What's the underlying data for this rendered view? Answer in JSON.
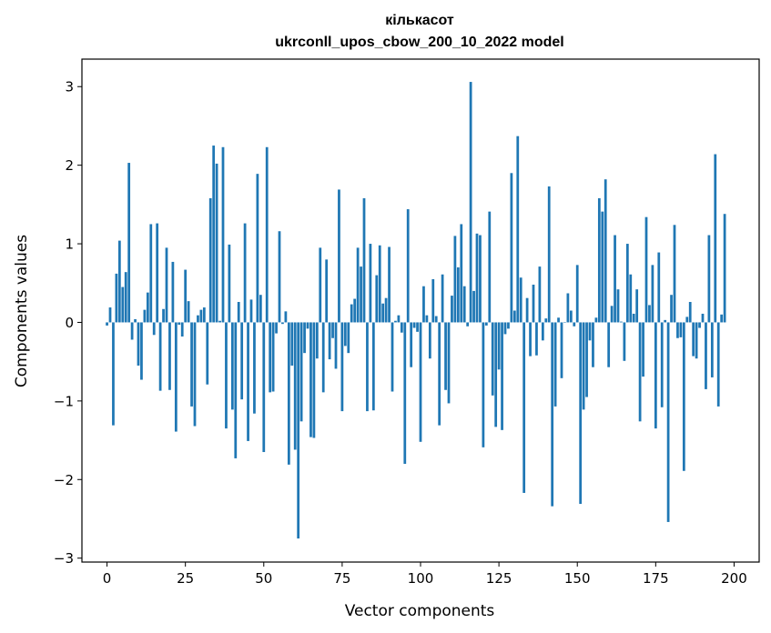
{
  "chart_data": {
    "type": "bar",
    "title": "кількасот",
    "subtitle": "ukrconll_upos_cbow_200_10_2022 model",
    "xlabel": "Vector components",
    "ylabel": "Components values",
    "xlim": [
      -8,
      208
    ],
    "ylim": [
      -3.05,
      3.35
    ],
    "xticks": [
      0,
      25,
      50,
      75,
      100,
      125,
      150,
      175,
      200
    ],
    "yticks": [
      -3,
      -2,
      -1,
      0,
      1,
      2,
      3
    ],
    "ytick_labels": [
      "−3",
      "−2",
      "−1",
      "0",
      "1",
      "2",
      "3"
    ],
    "grid": false,
    "bar_color": "#1f77b4",
    "series": [
      {
        "values": [
          -0.04,
          0.19,
          -1.31,
          0.62,
          1.04,
          0.45,
          0.64,
          2.03,
          -0.22,
          0.04,
          -0.55,
          -0.73,
          0.16,
          0.38,
          1.25,
          -0.16,
          1.26,
          -0.87,
          0.17,
          0.95,
          -0.86,
          0.77,
          -1.39,
          -0.03,
          -0.18,
          0.67,
          0.27,
          -1.07,
          -1.32,
          0.09,
          0.16,
          0.19,
          -0.79,
          1.58,
          2.25,
          2.02,
          0.02,
          2.23,
          -1.35,
          0.99,
          -1.11,
          -1.73,
          0.26,
          -0.98,
          1.26,
          -1.51,
          0.29,
          -1.16,
          1.89,
          0.35,
          -1.65,
          2.23,
          -0.89,
          -0.88,
          -0.14,
          1.16,
          -0.02,
          0.14,
          -1.81,
          -0.55,
          -1.62,
          -2.75,
          -1.26,
          -0.39,
          -0.08,
          -1.46,
          -1.47,
          -0.46,
          0.95,
          -0.89,
          0.8,
          -0.47,
          -0.2,
          -0.59,
          1.69,
          -1.13,
          -0.3,
          -0.39,
          0.23,
          0.3,
          0.95,
          0.71,
          1.58,
          -1.13,
          1.0,
          -1.12,
          0.6,
          0.98,
          0.24,
          0.31,
          0.96,
          -0.88,
          0.02,
          0.09,
          -0.13,
          -1.8,
          1.44,
          -0.57,
          -0.07,
          -0.12,
          -1.52,
          0.46,
          0.09,
          -0.46,
          0.55,
          0.08,
          -1.31,
          0.61,
          -0.86,
          -1.03,
          0.34,
          1.1,
          0.7,
          1.25,
          0.46,
          -0.05,
          3.06,
          0.4,
          1.13,
          1.11,
          -1.59,
          -0.04,
          1.41,
          -0.93,
          -1.33,
          -0.6,
          -1.37,
          -0.15,
          -0.08,
          1.9,
          0.15,
          2.37,
          0.57,
          -2.17,
          0.31,
          -0.43,
          0.48,
          -0.42,
          0.71,
          -0.23,
          0.05,
          1.73,
          -2.34,
          -1.07,
          0.06,
          -0.71,
          0.0,
          0.37,
          0.15,
          -0.05,
          0.73,
          -2.31,
          -1.11,
          -0.95,
          -0.23,
          -0.57,
          0.06,
          1.58,
          1.41,
          1.82,
          -0.57,
          0.21,
          1.11,
          0.42,
          0.01,
          -0.49,
          1.0,
          0.61,
          0.11,
          0.42,
          -1.26,
          -0.69,
          1.34,
          0.22,
          0.73,
          -1.35,
          0.89,
          -1.08,
          0.03,
          -2.54,
          0.35,
          1.24,
          -0.2,
          -0.19,
          -1.89,
          0.07,
          0.26,
          -0.43,
          -0.46,
          -0.07,
          0.11,
          -0.85,
          1.11,
          -0.7,
          2.14,
          -1.07,
          0.1,
          1.38
        ]
      }
    ]
  }
}
